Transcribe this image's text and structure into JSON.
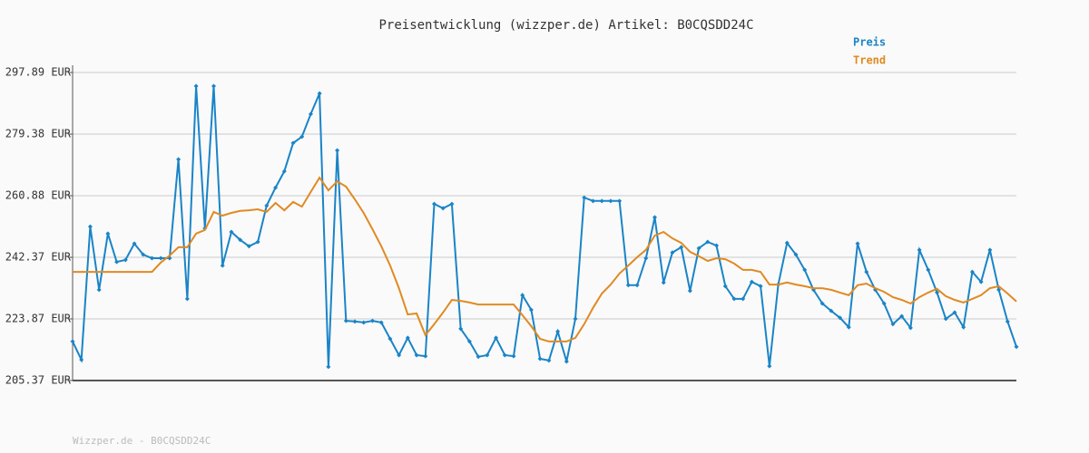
{
  "chart_data": {
    "type": "line",
    "title": "Preisentwicklung (wizzper.de) Artikel: B0CQSDD24C",
    "footer": "Wizzper.de - B0CQSDD24C",
    "ylim": [
      205.37,
      297.89
    ],
    "yticks": [
      {
        "value": 205.37,
        "label": "205.37 EUR"
      },
      {
        "value": 223.87,
        "label": "223.87 EUR"
      },
      {
        "value": 242.37,
        "label": "242.37 EUR"
      },
      {
        "value": 260.88,
        "label": "260.88 EUR"
      },
      {
        "value": 279.38,
        "label": "279.38 EUR"
      },
      {
        "value": 297.89,
        "label": "297.89 EUR"
      }
    ],
    "grid": true,
    "legend": "top-right",
    "series": [
      {
        "name": "Preis",
        "color": "#1a84c7",
        "markers": true,
        "values": [
          217.1,
          211.6,
          251.6,
          232.6,
          249.5,
          241.0,
          241.6,
          246.5,
          243.2,
          242.1,
          242.1,
          242.1,
          271.8,
          229.9,
          293.8,
          251.1,
          293.8,
          239.9,
          250.0,
          247.6,
          245.7,
          247.0,
          257.9,
          263.3,
          268.2,
          276.7,
          278.6,
          285.4,
          291.6,
          209.5,
          274.5,
          223.3,
          223.1,
          222.8,
          223.3,
          222.8,
          217.9,
          213.0,
          218.2,
          213.0,
          212.7,
          258.4,
          257.1,
          258.4,
          220.9,
          217.1,
          212.5,
          213.0,
          218.2,
          213.0,
          212.7,
          231.0,
          226.6,
          211.9,
          211.4,
          220.1,
          211.1,
          223.9,
          260.3,
          259.3,
          259.3,
          259.3,
          259.3,
          234.0,
          234.0,
          242.1,
          254.4,
          234.8,
          243.8,
          245.4,
          232.3,
          245.1,
          247.0,
          245.9,
          233.7,
          229.9,
          229.9,
          235.0,
          233.7,
          209.7,
          234.2,
          246.7,
          243.2,
          238.6,
          232.6,
          228.5,
          226.3,
          224.2,
          221.4,
          246.5,
          238.0,
          232.6,
          228.5,
          222.3,
          224.7,
          221.2,
          244.6,
          238.6,
          231.8,
          223.9,
          225.8,
          221.4,
          238.0,
          235.0,
          244.6,
          232.6,
          223.1,
          215.5
        ]
      },
      {
        "name": "Trend",
        "color": "#e08a22",
        "markers": false,
        "values": [
          238.0,
          238.0,
          238.0,
          238.0,
          238.0,
          238.0,
          238.0,
          238.0,
          238.0,
          238.0,
          240.8,
          242.9,
          245.4,
          245.4,
          249.5,
          250.6,
          256.0,
          254.9,
          255.7,
          256.3,
          256.5,
          256.8,
          256.0,
          258.7,
          256.5,
          259.0,
          257.6,
          262.0,
          266.3,
          262.5,
          265.2,
          263.6,
          259.8,
          255.7,
          250.8,
          245.7,
          239.9,
          233.1,
          225.2,
          225.5,
          219.0,
          222.3,
          225.8,
          229.6,
          229.3,
          228.8,
          228.2,
          228.2,
          228.2,
          228.2,
          228.2,
          225.0,
          221.7,
          217.9,
          217.1,
          217.1,
          217.1,
          218.2,
          222.3,
          227.2,
          231.5,
          234.2,
          237.5,
          239.9,
          242.4,
          244.6,
          248.9,
          250.0,
          248.1,
          246.7,
          244.0,
          242.7,
          241.3,
          242.1,
          241.8,
          240.5,
          238.6,
          238.6,
          238.0,
          234.2,
          234.2,
          234.8,
          234.2,
          233.7,
          233.1,
          233.1,
          232.6,
          231.8,
          231.0,
          234.0,
          234.5,
          233.1,
          232.0,
          230.4,
          229.6,
          228.5,
          230.4,
          231.8,
          232.9,
          230.7,
          229.6,
          228.8,
          229.9,
          231.0,
          233.1,
          233.7,
          231.5,
          229.1
        ]
      }
    ]
  }
}
